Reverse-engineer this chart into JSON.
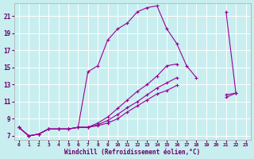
{
  "xlabel": "Windchill (Refroidissement éolien,°C)",
  "bg_color": "#c8eef0",
  "line_color": "#990099",
  "xlim": [
    -0.5,
    23.5
  ],
  "ylim": [
    6.5,
    22.5
  ],
  "xticks": [
    0,
    1,
    2,
    3,
    4,
    5,
    6,
    7,
    8,
    9,
    10,
    11,
    12,
    13,
    14,
    15,
    16,
    17,
    18,
    19,
    20,
    21,
    22,
    23
  ],
  "yticks": [
    7,
    9,
    11,
    13,
    15,
    17,
    19,
    21
  ],
  "series1_x": [
    0,
    1,
    2,
    3,
    4,
    5,
    6,
    7,
    8,
    9,
    10,
    11,
    12,
    13,
    14,
    15,
    16,
    17,
    18
  ],
  "series1_y": [
    8.0,
    7.0,
    7.2,
    7.8,
    7.8,
    7.8,
    8.0,
    14.5,
    15.2,
    18.2,
    19.5,
    20.2,
    21.5,
    22.0,
    22.2,
    19.5,
    17.8,
    15.2,
    13.8
  ],
  "series2_x": [
    0,
    1,
    2,
    3,
    4,
    5,
    6,
    7,
    8,
    9,
    10,
    11,
    12,
    13,
    14,
    15,
    16,
    17,
    18,
    19,
    20,
    21,
    22
  ],
  "series2_y": [
    8.0,
    7.0,
    7.2,
    7.8,
    7.8,
    7.8,
    8.0,
    8.0,
    8.5,
    9.2,
    10.2,
    11.2,
    12.2,
    13.0,
    14.0,
    15.2,
    15.4,
    null,
    null,
    null,
    null,
    21.5,
    12.0
  ],
  "series3_x": [
    0,
    1,
    2,
    3,
    4,
    5,
    6,
    7,
    8,
    9,
    10,
    11,
    12,
    13,
    14,
    15,
    16,
    17,
    18,
    19,
    20,
    21,
    22
  ],
  "series3_y": [
    8.0,
    7.0,
    7.2,
    7.8,
    7.8,
    7.8,
    8.0,
    8.0,
    8.3,
    8.8,
    9.5,
    10.3,
    11.0,
    11.8,
    12.6,
    13.2,
    13.8,
    null,
    null,
    null,
    null,
    11.8,
    12.0
  ],
  "series4_x": [
    0,
    1,
    2,
    3,
    4,
    5,
    6,
    7,
    8,
    9,
    10,
    11,
    12,
    13,
    14,
    15,
    16,
    17,
    18,
    19,
    20,
    21,
    22
  ],
  "series4_y": [
    8.0,
    7.0,
    7.2,
    7.8,
    7.8,
    7.8,
    8.0,
    8.0,
    8.2,
    8.5,
    9.0,
    9.8,
    10.5,
    11.2,
    11.9,
    12.3,
    12.9,
    null,
    null,
    null,
    null,
    11.5,
    12.0
  ]
}
